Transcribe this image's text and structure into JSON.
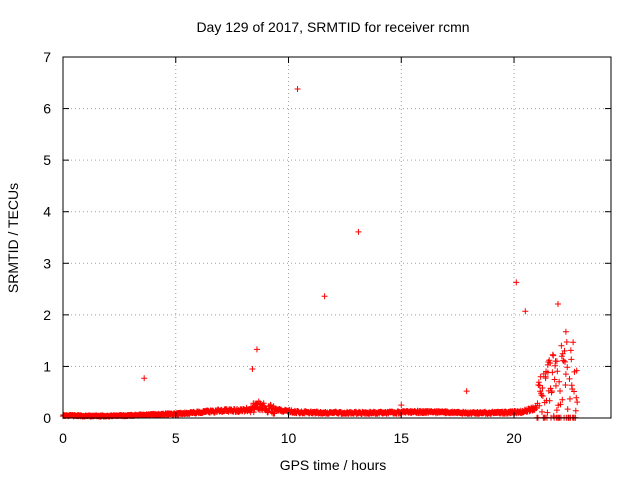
{
  "chart_data": {
    "type": "scatter",
    "title": "Day 129 of 2017, SRMTID for receiver rcmn",
    "xlabel": "GPS time / hours",
    "ylabel": "SRMTID / TECUs",
    "xlim": [
      0,
      24.3
    ],
    "ylim": [
      0,
      7
    ],
    "xticks": [
      0,
      5,
      10,
      15,
      20
    ],
    "xtick_labels": [
      "0",
      "5",
      "10",
      "15",
      "20"
    ],
    "yticks": [
      0,
      1,
      2,
      3,
      4,
      5,
      6,
      7
    ],
    "ytick_labels": [
      "0",
      "1",
      "2",
      "3",
      "4",
      "5",
      "6",
      "7"
    ],
    "grid": true,
    "marker": "+",
    "color": "#ff0000",
    "baseline_profile": [
      [
        0.0,
        0.05
      ],
      [
        1.0,
        0.04
      ],
      [
        2.0,
        0.04
      ],
      [
        3.0,
        0.05
      ],
      [
        4.0,
        0.07
      ],
      [
        5.0,
        0.08
      ],
      [
        6.0,
        0.11
      ],
      [
        7.0,
        0.14
      ],
      [
        8.0,
        0.15
      ],
      [
        8.8,
        0.23
      ],
      [
        9.5,
        0.15
      ],
      [
        10.5,
        0.11
      ],
      [
        12.0,
        0.1
      ],
      [
        14.0,
        0.1
      ],
      [
        15.0,
        0.11
      ],
      [
        16.0,
        0.12
      ],
      [
        18.0,
        0.1
      ],
      [
        19.5,
        0.1
      ],
      [
        20.3,
        0.12
      ],
      [
        21.0,
        0.2
      ],
      [
        21.5,
        0.35
      ],
      [
        22.0,
        0.45
      ],
      [
        22.4,
        0.55
      ],
      [
        22.8,
        0.4
      ]
    ],
    "outliers": {
      "x": [
        3.6,
        8.4,
        8.6,
        10.4,
        11.6,
        13.1,
        15.0,
        17.9,
        20.1,
        20.5,
        21.4,
        21.5,
        21.9,
        21.95,
        22.3
      ],
      "y": [
        0.77,
        0.95,
        1.33,
        6.38,
        2.36,
        3.61,
        0.25,
        0.52,
        2.63,
        2.07,
        0.8,
        0.88,
        1.1,
        2.21,
        0.85
      ]
    }
  }
}
